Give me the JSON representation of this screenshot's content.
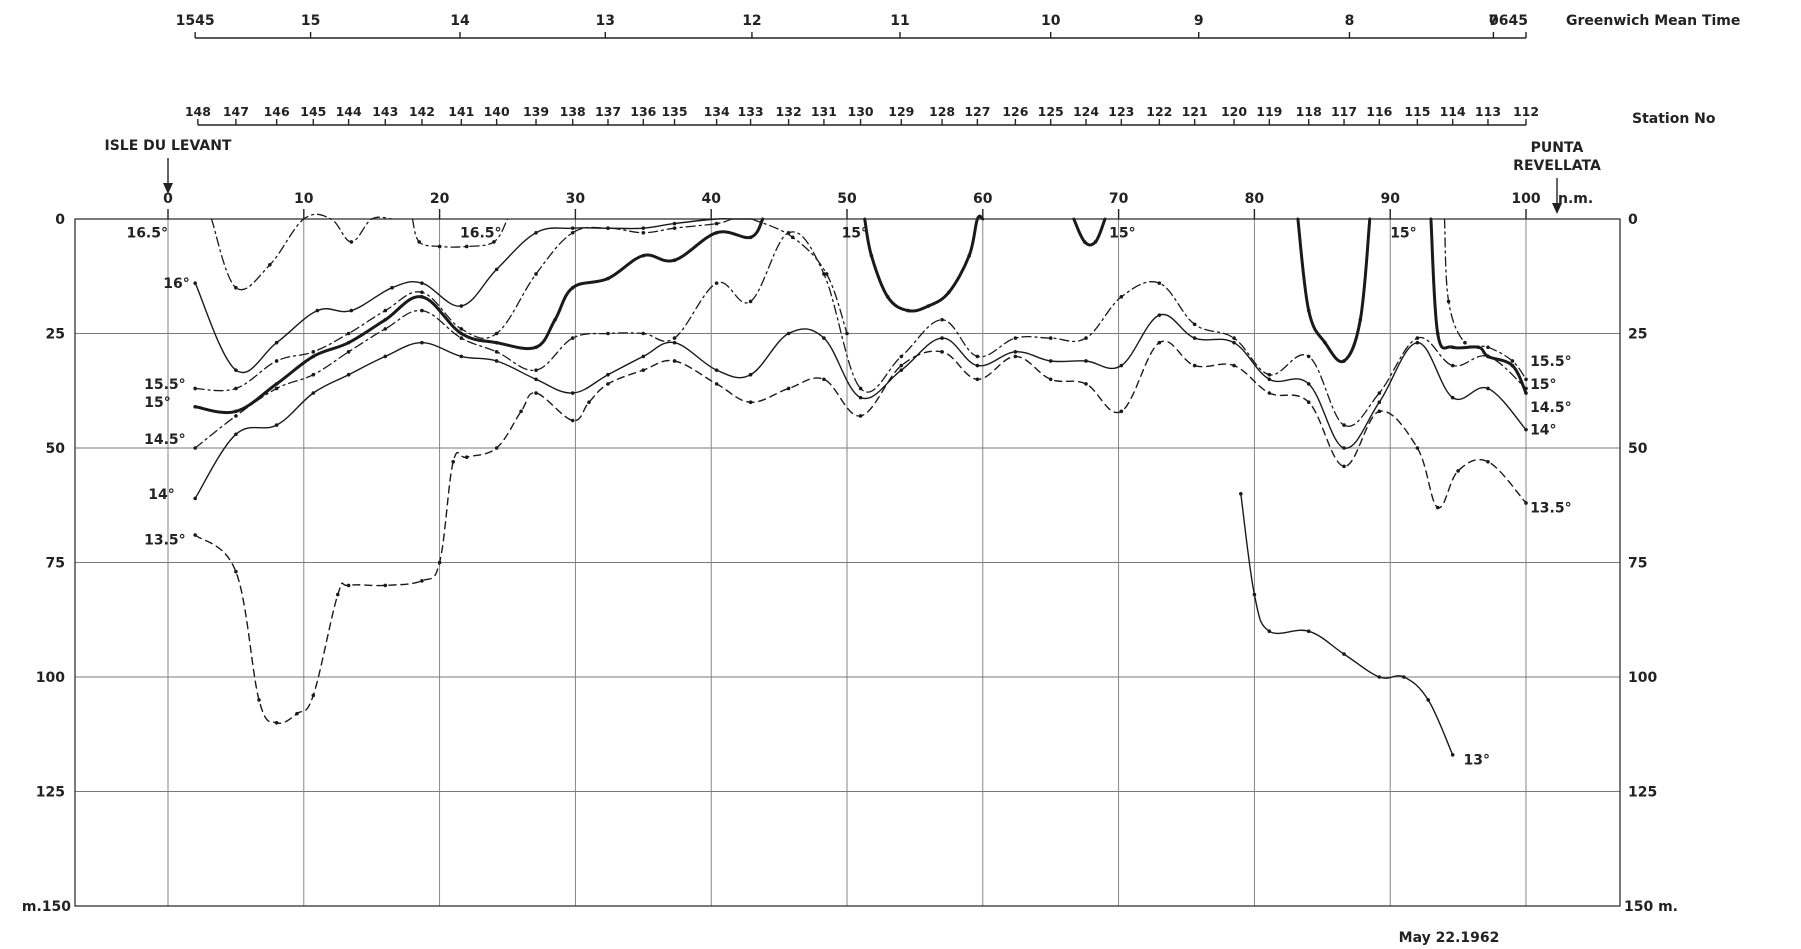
{
  "chart_data": {
    "type": "line",
    "time_axis": {
      "label": "Greenwich Mean Time",
      "ticks": [
        {
          "label": "1545",
          "nm": 2
        },
        {
          "label": "15",
          "nm": 10.5
        },
        {
          "label": "14",
          "nm": 21.5
        },
        {
          "label": "13",
          "nm": 32.2
        },
        {
          "label": "12",
          "nm": 43
        },
        {
          "label": "11",
          "nm": 53.9
        },
        {
          "label": "10",
          "nm": 65
        },
        {
          "label": "9",
          "nm": 75.9
        },
        {
          "label": "8",
          "nm": 87
        },
        {
          "label": "7",
          "nm": 97.6
        },
        {
          "label": "0645",
          "nm": 100
        }
      ]
    },
    "station_axis": {
      "label": "Station No",
      "ticks": [
        {
          "label": "148",
          "nm": 2.2
        },
        {
          "label": "147",
          "nm": 5
        },
        {
          "label": "146",
          "nm": 8
        },
        {
          "label": "145",
          "nm": 10.7
        },
        {
          "label": "144",
          "nm": 13.3
        },
        {
          "label": "143",
          "nm": 16
        },
        {
          "label": "142",
          "nm": 18.7
        },
        {
          "label": "141",
          "nm": 21.6
        },
        {
          "label": "140",
          "nm": 24.2
        },
        {
          "label": "139",
          "nm": 27.1
        },
        {
          "label": "138",
          "nm": 29.8
        },
        {
          "label": "137",
          "nm": 32.4
        },
        {
          "label": "136",
          "nm": 35
        },
        {
          "label": "135",
          "nm": 37.3
        },
        {
          "label": "134",
          "nm": 40.4
        },
        {
          "label": "133",
          "nm": 42.9
        },
        {
          "label": "132",
          "nm": 45.7
        },
        {
          "label": "131",
          "nm": 48.3
        },
        {
          "label": "130",
          "nm": 51
        },
        {
          "label": "129",
          "nm": 54
        },
        {
          "label": "128",
          "nm": 57
        },
        {
          "label": "127",
          "nm": 59.6
        },
        {
          "label": "126",
          "nm": 62.4
        },
        {
          "label": "125",
          "nm": 65
        },
        {
          "label": "124",
          "nm": 67.6
        },
        {
          "label": "123",
          "nm": 70.2
        },
        {
          "label": "122",
          "nm": 73
        },
        {
          "label": "121",
          "nm": 75.6
        },
        {
          "label": "120",
          "nm": 78.5
        },
        {
          "label": "119",
          "nm": 81.1
        },
        {
          "label": "118",
          "nm": 84
        },
        {
          "label": "117",
          "nm": 86.6
        },
        {
          "label": "116",
          "nm": 89.2
        },
        {
          "label": "115",
          "nm": 92
        },
        {
          "label": "114",
          "nm": 94.6
        },
        {
          "label": "113",
          "nm": 97.2
        },
        {
          "label": "112",
          "nm": 100
        }
      ]
    },
    "x_axis": {
      "unit": "n.m.",
      "range": [
        0,
        100
      ],
      "ticks": [
        "0",
        "10",
        "20",
        "30",
        "40",
        "50",
        "60",
        "70",
        "80",
        "90",
        "100"
      ]
    },
    "y_axis": {
      "range": [
        0,
        150
      ],
      "inverted": true,
      "ticks": [
        "0",
        "25",
        "50",
        "75",
        "100",
        "125"
      ],
      "left_bottom_label": "m.150",
      "right_bottom_label": "150 m."
    },
    "grid": true,
    "endpoints": {
      "left": "ISLE DU LEVANT",
      "right": "PUNTA REVELLATA"
    },
    "date": "May 22.1962",
    "series": [
      {
        "name": "16.5°",
        "style": "dashdot",
        "x": [
          3.2,
          5,
          7.5,
          10,
          12,
          13.5,
          15,
          16.5
        ],
        "y": [
          0,
          15,
          10,
          0,
          0,
          5,
          0,
          0
        ]
      },
      {
        "name": "16.5°",
        "style": "dashdot",
        "x": [
          18,
          18.5,
          20,
          22,
          24,
          25
        ],
        "y": [
          0,
          5,
          6,
          6,
          5,
          0
        ]
      },
      {
        "name": "16°",
        "style": "dashdot",
        "x": [
          43,
          46,
          48.5,
          50
        ],
        "y": [
          0,
          4,
          12,
          25
        ]
      },
      {
        "name": "16°",
        "style": "solid-thin",
        "x": [
          2,
          5,
          8,
          11,
          13.5,
          16.5,
          18.7,
          21.6,
          24.2,
          27.1,
          29.8,
          32.4,
          35,
          37.3,
          40.4,
          41.5,
          43
        ],
        "y": [
          14,
          33,
          27,
          20,
          20,
          15,
          14,
          19,
          11,
          3,
          2,
          2,
          2,
          1,
          0,
          0,
          0
        ]
      },
      {
        "name": "15.5°",
        "style": "dashdot",
        "x": [
          2,
          5,
          8,
          10.7,
          13.3,
          16,
          18.7,
          21.6,
          24.2,
          27.1,
          29.8,
          32.4,
          35,
          37.3,
          40.4,
          41.5
        ],
        "y": [
          37,
          37,
          31,
          29,
          25,
          20,
          16,
          24,
          25,
          12,
          3,
          2,
          3,
          2,
          1,
          0
        ]
      },
      {
        "name": "15°",
        "style": "thick",
        "x": [
          2,
          5,
          8,
          10.7,
          13.3,
          16,
          18.7,
          21.6,
          24.2,
          27.1,
          28.5,
          29.8,
          32.4,
          35,
          37.3,
          40.4,
          42.9,
          43.8
        ],
        "y": [
          41,
          42,
          36,
          30,
          27,
          22,
          17,
          25,
          27,
          28,
          22,
          15,
          13,
          8,
          9,
          3,
          4,
          0
        ]
      },
      {
        "name": "14.5°",
        "style": "dashdot",
        "x": [
          2,
          5,
          8,
          10.7,
          13.3,
          16,
          18.7,
          21.6,
          24.2,
          27.1,
          29.8,
          32.4,
          35,
          37.3,
          40.4,
          42.9,
          45.7,
          48.3,
          51,
          54,
          57,
          59.6,
          62.4,
          65,
          67.6,
          70.2,
          73,
          75.6,
          78.5,
          81.1,
          84,
          86.6,
          89.2,
          92,
          94.6,
          97.2,
          100
        ],
        "y": [
          50,
          43,
          37,
          34,
          29,
          24,
          20,
          26,
          29,
          33,
          26,
          25,
          25,
          26,
          14,
          18,
          3,
          12,
          37,
          30,
          22,
          30,
          26,
          26,
          26,
          17,
          14,
          23,
          26,
          34,
          30,
          45,
          38,
          26,
          32,
          30,
          37
        ]
      },
      {
        "name": "14°",
        "style": "solid-thin",
        "x": [
          2,
          5,
          8,
          10.7,
          13.3,
          16,
          18.7,
          21.6,
          24.2,
          27.1,
          29.8,
          32.4,
          35,
          37.3,
          40.4,
          42.9,
          45.7,
          48.3,
          51,
          54,
          57,
          59.6,
          62.4,
          65,
          67.6,
          70.2,
          73,
          75.6,
          78.5,
          81.1,
          84,
          86.6,
          89.2,
          92,
          94.6,
          97.2,
          100
        ],
        "y": [
          61,
          47,
          45,
          38,
          34,
          30,
          27,
          30,
          31,
          35,
          38,
          34,
          30,
          27,
          33,
          34,
          25,
          26,
          39,
          33,
          26,
          32,
          29,
          31,
          31,
          32,
          21,
          26,
          27,
          35,
          36,
          50,
          40,
          27,
          39,
          37,
          46
        ]
      },
      {
        "name": "13.5°",
        "style": "dashed",
        "x": [
          2,
          5,
          6.7,
          8,
          9.5,
          10.7,
          12.5,
          13.3,
          16,
          18.7,
          20,
          21,
          22,
          24.2,
          26,
          27.1,
          29.8,
          31,
          32.4,
          35,
          37.3,
          40.4,
          42.9,
          45.7,
          48.3,
          51,
          54,
          57,
          59.6,
          62.4,
          65,
          67.6,
          70.2,
          73,
          75.6,
          78.5,
          81.1,
          84,
          86.6,
          89.2,
          92,
          93.5,
          95,
          97.2,
          100
        ],
        "y": [
          69,
          77,
          105,
          110,
          108,
          104,
          82,
          80,
          80,
          79,
          75,
          53,
          52,
          50,
          42,
          38,
          44,
          40,
          36,
          33,
          31,
          36,
          40,
          37,
          35,
          43,
          32,
          29,
          35,
          30,
          35,
          36,
          42,
          27,
          32,
          32,
          38,
          40,
          54,
          42,
          50,
          63,
          55,
          53,
          62
        ]
      },
      {
        "name": "15°",
        "style": "thick",
        "x": [
          51.3,
          51.8,
          53,
          54.5,
          56,
          57.5,
          59,
          59.6,
          60
        ],
        "y": [
          0,
          8,
          17,
          20,
          19,
          16,
          8,
          0,
          0
        ]
      },
      {
        "name": "15°",
        "style": "thick",
        "x": [
          66.7,
          67.5,
          68.3,
          69
        ],
        "y": [
          0,
          5,
          5,
          0
        ]
      },
      {
        "name": "15°",
        "style": "thick",
        "x": [
          83.2,
          84,
          85.2,
          86.6,
          87.8,
          88.5
        ],
        "y": [
          0,
          20,
          27,
          31,
          22,
          0
        ]
      },
      {
        "name": "15°",
        "style": "thick",
        "x": [
          93,
          93.5,
          94.6,
          96.5,
          97.2,
          99,
          100
        ],
        "y": [
          0,
          25,
          28,
          28,
          30,
          32,
          38
        ]
      },
      {
        "name": "15.5°",
        "style": "dashdot",
        "x": [
          94,
          94.3,
          95.5,
          97.2,
          99,
          100
        ],
        "y": [
          0,
          18,
          27,
          28,
          31,
          35
        ]
      },
      {
        "name": "13°",
        "style": "solid-thin",
        "x": [
          79,
          80,
          81.1,
          84,
          86.6,
          89.2,
          91,
          92.8,
          94.6
        ],
        "y": [
          60,
          82,
          90,
          90,
          95,
          100,
          100,
          105,
          117
        ]
      }
    ],
    "annotations": [
      {
        "text": "16.5°",
        "x": 0,
        "y": 3,
        "anchor": "end"
      },
      {
        "text": "16°",
        "x": 1.6,
        "y": 14,
        "anchor": "end"
      },
      {
        "text": "15.5°",
        "x": 1.3,
        "y": 36,
        "anchor": "end"
      },
      {
        "text": "15°",
        "x": 0.2,
        "y": 40,
        "anchor": "end"
      },
      {
        "text": "14.5°",
        "x": 1.3,
        "y": 48,
        "anchor": "end"
      },
      {
        "text": "14°",
        "x": 0.5,
        "y": 60,
        "anchor": "end"
      },
      {
        "text": "13.5°",
        "x": 1.3,
        "y": 70,
        "anchor": "end"
      },
      {
        "text": "16.5°",
        "x": 21.5,
        "y": 3,
        "anchor": "start"
      },
      {
        "text": "15°",
        "x": 49.6,
        "y": 3,
        "anchor": "start"
      },
      {
        "text": "15°",
        "x": 69.3,
        "y": 3,
        "anchor": "start"
      },
      {
        "text": "15°",
        "x": 90,
        "y": 3,
        "anchor": "start"
      },
      {
        "text": "15.5°",
        "x": 100.3,
        "y": 31,
        "anchor": "start"
      },
      {
        "text": "15°",
        "x": 100.3,
        "y": 36,
        "anchor": "start"
      },
      {
        "text": "14.5°",
        "x": 100.3,
        "y": 41,
        "anchor": "start"
      },
      {
        "text": "14°",
        "x": 100.3,
        "y": 46,
        "anchor": "start"
      },
      {
        "text": "13.5°",
        "x": 100.3,
        "y": 63,
        "anchor": "start"
      },
      {
        "text": "13°",
        "x": 95.4,
        "y": 118,
        "anchor": "start"
      }
    ]
  }
}
